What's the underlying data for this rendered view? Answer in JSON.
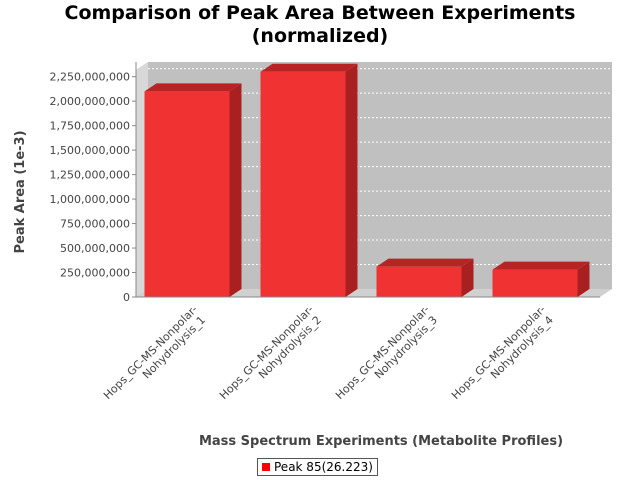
{
  "chart_data": {
    "type": "bar",
    "title": "Comparison of Peak Area Between Experiments",
    "subtitle": "(normalized)",
    "xlabel": "Mass Spectrum Experiments (Metabolite Profiles)",
    "ylabel": "Peak Area (1e-3)",
    "categories": [
      "Hops_GC-MS-Nonpolar-Nohydrolysis_1",
      "Hops_GC-MS-Nonpolar-Nohydrolysis_2",
      "Hops_GC-MS-Nonpolar-Nohydrolysis_3",
      "Hops_GC-MS-Nonpolar-Nohydrolysis_4"
    ],
    "category_lines": [
      [
        "Hops_GC-MS-Nonpolar-",
        "Nohydrolysis_1"
      ],
      [
        "Hops_GC-MS-Nonpolar-",
        "Nohydrolysis_2"
      ],
      [
        "Hops_GC-MS-Nonpolar-",
        "Nohydrolysis_3"
      ],
      [
        "Hops_GC-MS-Nonpolar-",
        "Nohydrolysis_4"
      ]
    ],
    "series": [
      {
        "name": "Peak 85(26.223)",
        "values": [
          2100000000,
          2300000000,
          310000000,
          280000000
        ],
        "color": "#ff0000"
      }
    ],
    "ylim": [
      0,
      2400000000
    ],
    "yticks": [
      0,
      250000000,
      500000000,
      750000000,
      1000000000,
      1250000000,
      1500000000,
      1750000000,
      2000000000,
      2250000000
    ],
    "ytick_labels": [
      "0",
      "250,000,000",
      "500,000,000",
      "750,000,000",
      "1,000,000,000",
      "1,250,000,000",
      "1,500,000,000",
      "1,750,000,000",
      "2,000,000,000",
      "2,250,000,000"
    ],
    "grid": true,
    "legend_position": "bottom-center",
    "plot_background": "#c0c0c0"
  }
}
